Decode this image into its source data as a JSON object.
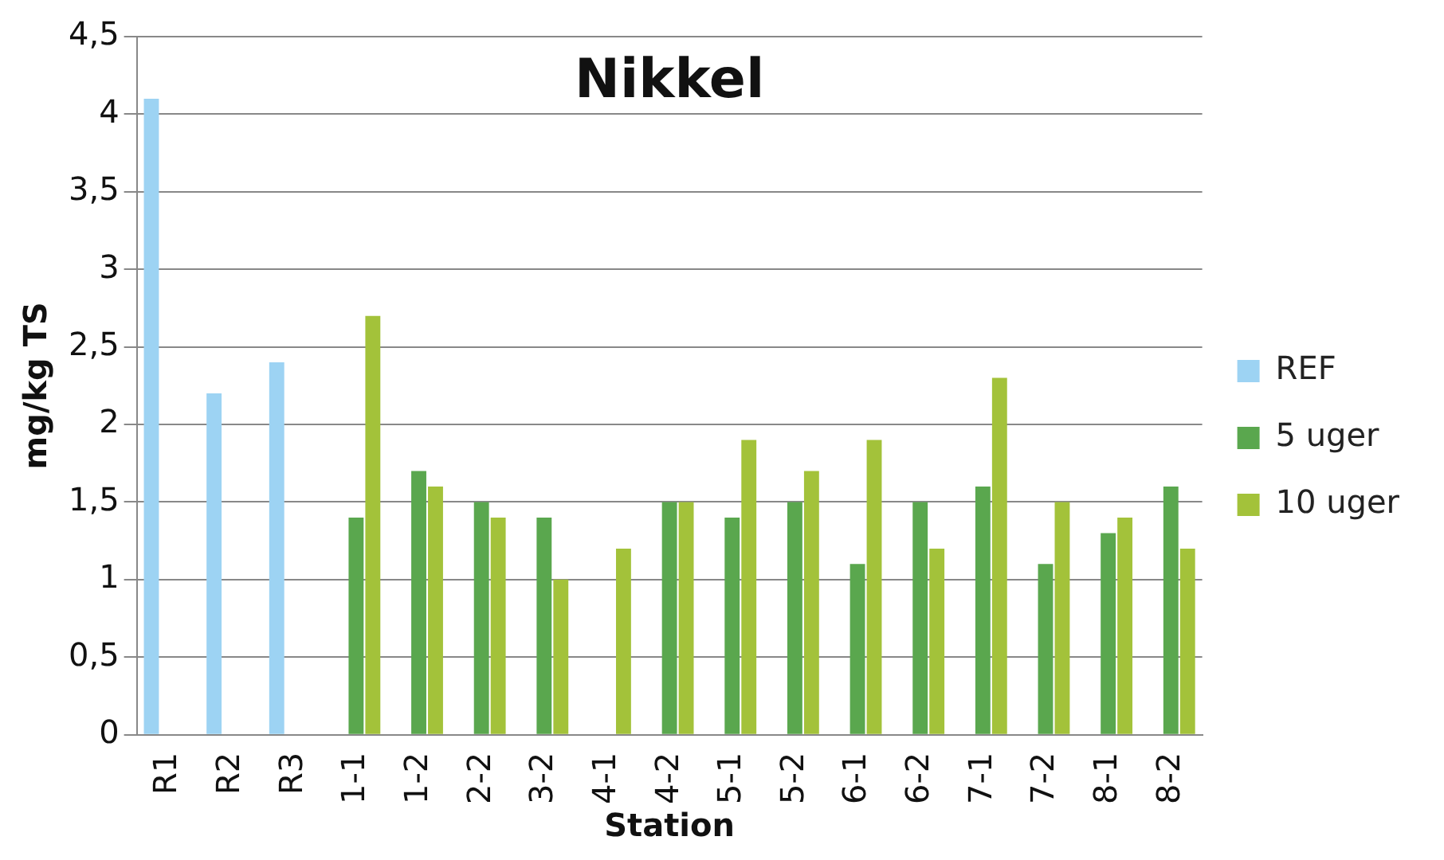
{
  "chart_data": {
    "type": "bar",
    "title": "Nikkel",
    "xlabel": "Station",
    "ylabel": "mg/kg TS",
    "categories": [
      "R1",
      "R2",
      "R3",
      "1-1",
      "1-2",
      "2-2",
      "3-2",
      "4-1",
      "4-2",
      "5-1",
      "5-2",
      "6-1",
      "6-2",
      "7-1",
      "7-2",
      "8-1",
      "8-2"
    ],
    "series": [
      {
        "name": "REF",
        "color": "#9dd3f3",
        "values": [
          4.1,
          2.2,
          2.4,
          null,
          null,
          null,
          null,
          null,
          null,
          null,
          null,
          null,
          null,
          null,
          null,
          null,
          null
        ]
      },
      {
        "name": "5 uger",
        "color": "#5aa74e",
        "values": [
          null,
          null,
          null,
          1.4,
          1.7,
          1.5,
          1.4,
          null,
          1.5,
          1.4,
          1.5,
          1.1,
          1.5,
          1.6,
          1.1,
          1.3,
          1.6
        ]
      },
      {
        "name": "10 uger",
        "color": "#a3c23a",
        "values": [
          null,
          null,
          null,
          2.7,
          1.6,
          1.4,
          1.0,
          1.2,
          1.5,
          1.9,
          1.7,
          1.9,
          1.2,
          2.3,
          1.5,
          1.4,
          1.2
        ]
      }
    ],
    "ylim": [
      0,
      4.5
    ],
    "yticks": [
      0,
      {
        "value": 0.5,
        "label": "0,5"
      },
      1,
      {
        "value": 1.5,
        "label": "1,5"
      },
      2,
      {
        "value": 2.5,
        "label": "2,5"
      },
      3,
      {
        "value": 3.5,
        "label": "3,5"
      },
      4,
      {
        "value": 4.5,
        "label": "4,5"
      }
    ],
    "grid": "y",
    "legend": "right"
  }
}
